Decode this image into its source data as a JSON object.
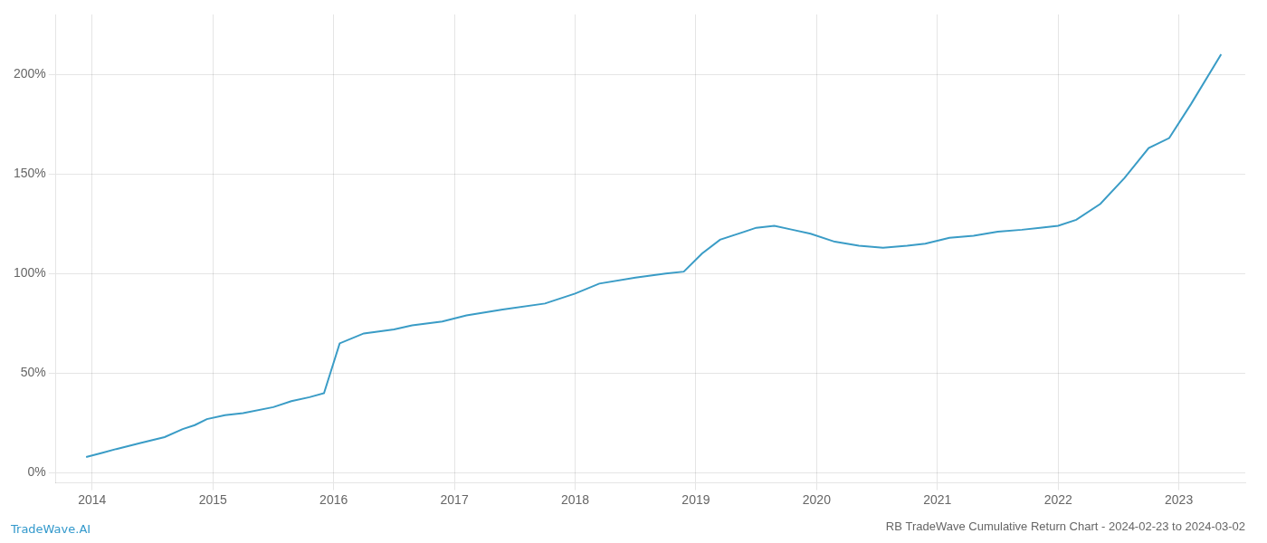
{
  "chart_data": {
    "type": "line",
    "title": "RB TradeWave Cumulative Return Chart - 2024-02-23 to 2024-03-02",
    "annotations": [
      {
        "text": "TradeWave.AI",
        "color": "#3399cc"
      }
    ],
    "color": "#3a9cc6",
    "x": [
      2013.95,
      2014.08,
      2014.2,
      2014.4,
      2014.6,
      2014.75,
      2014.85,
      2014.95,
      2015.1,
      2015.25,
      2015.5,
      2015.65,
      2015.8,
      2015.92,
      2016.05,
      2016.25,
      2016.5,
      2016.65,
      2016.9,
      2017.1,
      2017.4,
      2017.75,
      2018.0,
      2018.2,
      2018.5,
      2018.75,
      2018.9,
      2019.05,
      2019.2,
      2019.4,
      2019.5,
      2019.65,
      2019.8,
      2019.95,
      2020.15,
      2020.35,
      2020.55,
      2020.75,
      2020.9,
      2021.1,
      2021.3,
      2021.5,
      2021.7,
      2021.85,
      2022.0,
      2022.15,
      2022.35,
      2022.55,
      2022.75,
      2022.92,
      2023.1,
      2023.35
    ],
    "values": [
      8,
      10,
      12,
      15,
      18,
      22,
      24,
      27,
      29,
      30,
      33,
      36,
      38,
      40,
      65,
      70,
      72,
      74,
      76,
      79,
      82,
      85,
      90,
      95,
      98,
      100,
      101,
      110,
      117,
      121,
      123,
      124,
      122,
      120,
      116,
      114,
      113,
      114,
      115,
      118,
      119,
      121,
      122,
      123,
      124,
      127,
      135,
      148,
      163,
      168,
      185,
      210
    ],
    "xlim": [
      2013.7,
      2023.55
    ],
    "xticks": [
      2014,
      2015,
      2016,
      2017,
      2018,
      2019,
      2020,
      2021,
      2022,
      2023
    ],
    "ylim": [
      -5,
      230
    ],
    "yticks": [
      {
        "value": 0,
        "label": "0%"
      },
      {
        "value": 50,
        "label": "50%"
      },
      {
        "value": 100,
        "label": "100%"
      },
      {
        "value": 150,
        "label": "150%"
      },
      {
        "value": 200,
        "label": "200%"
      }
    ],
    "grid": true
  }
}
